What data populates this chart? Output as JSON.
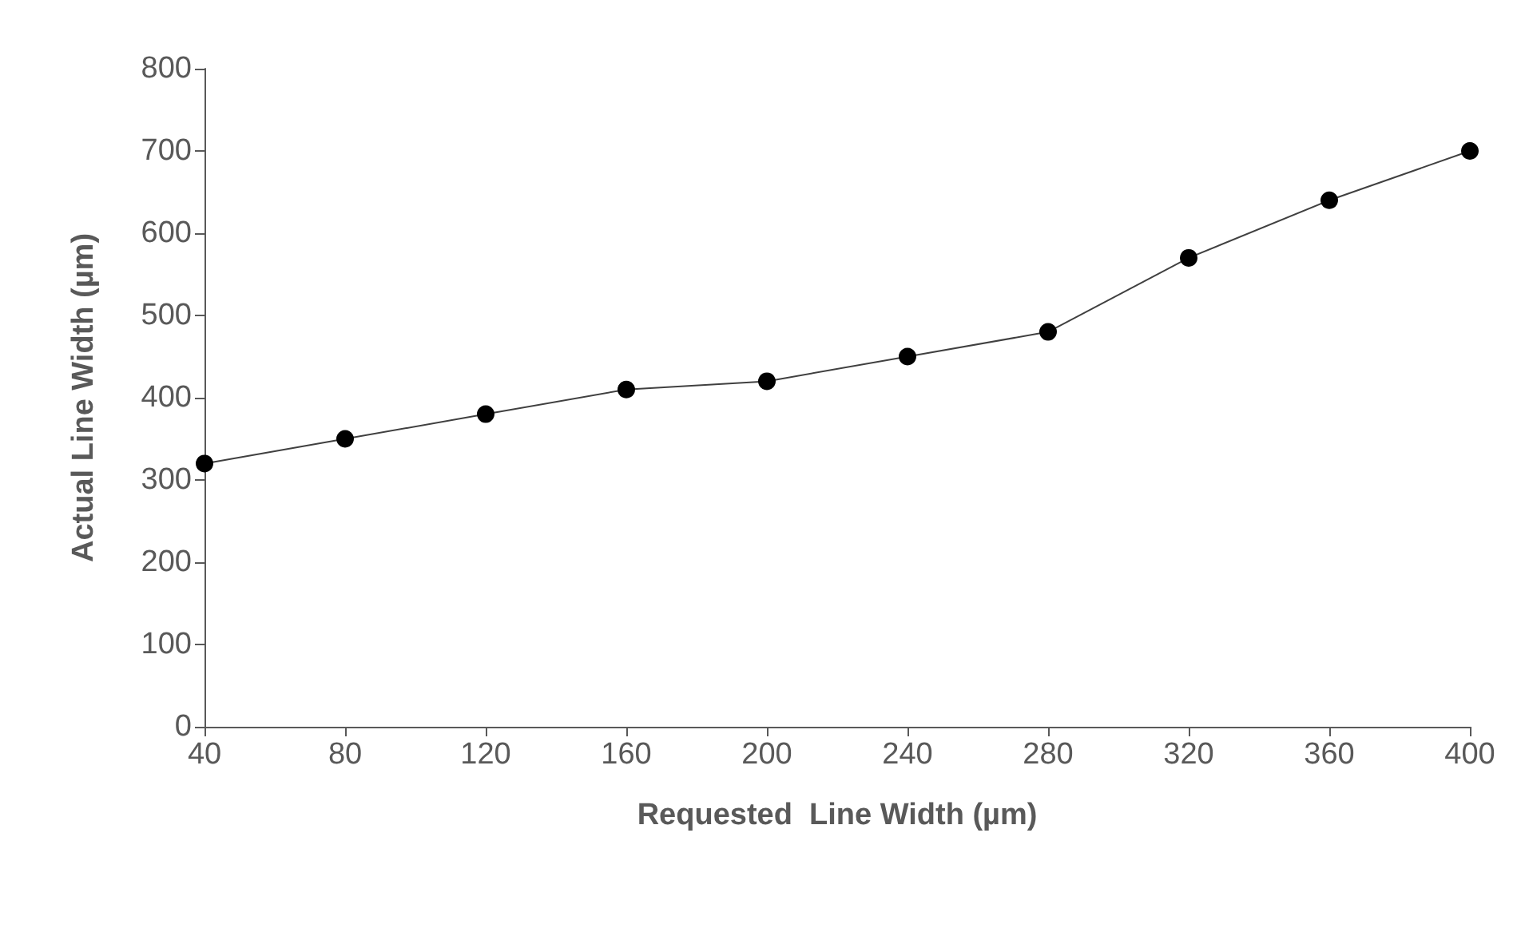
{
  "chart_data": {
    "type": "line",
    "xlabel": "Requested  Line Width (µm)",
    "ylabel": "Actual Line Width (µm)",
    "x": [
      40,
      80,
      120,
      160,
      200,
      240,
      280,
      320,
      360,
      400
    ],
    "series": [
      {
        "color": "#000000",
        "values": [
          320,
          350,
          380,
          410,
          420,
          450,
          480,
          570,
          640,
          700
        ]
      }
    ],
    "xlim": [
      40,
      400
    ],
    "xticks": [
      40,
      80,
      120,
      160,
      200,
      240,
      280,
      320,
      360,
      400
    ],
    "ylim": [
      0,
      800
    ],
    "yticks": [
      0,
      100,
      200,
      300,
      400,
      500,
      600,
      700,
      800
    ],
    "grid": false,
    "marker": "circle",
    "line_style": "solid"
  }
}
